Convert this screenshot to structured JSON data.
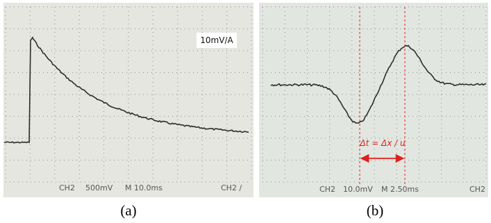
{
  "panels": [
    {
      "label_box": "10mV/A",
      "status": {
        "channel": "CH2",
        "scale": "500mV",
        "timebase": "M 10.0ms",
        "trigger": "CH2 ∕"
      },
      "caption": "(a)"
    },
    {
      "annotation": "Δt = Δx / u",
      "status": {
        "channel": "CH2",
        "scale": "10.0mV",
        "timebase": "M 2.50ms",
        "trigger": "CH2"
      },
      "caption": "(b)"
    }
  ]
}
